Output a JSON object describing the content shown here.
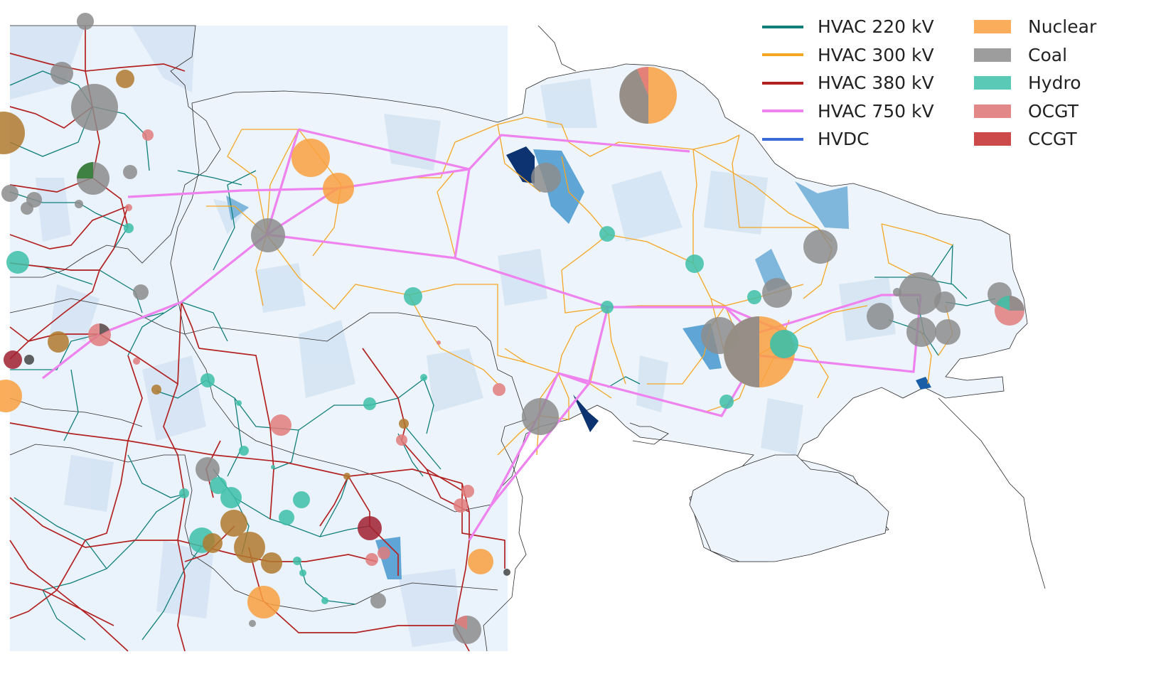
{
  "legend": {
    "lines": [
      {
        "label": "HVAC 220 kV",
        "color": "#0f7f7a"
      },
      {
        "label": "HVAC 300 kV",
        "color": "#f5a623"
      },
      {
        "label": "HVAC 380 kV",
        "color": "#b22222"
      },
      {
        "label": "HVAC 750 kV",
        "color": "#ee82ee"
      },
      {
        "label": "HVDC",
        "color": "#3a6bd6"
      }
    ],
    "carriers": [
      {
        "label": "Nuclear",
        "color": "#f9a03f"
      },
      {
        "label": "Coal",
        "color": "#8c8c8c"
      },
      {
        "label": "Hydro",
        "color": "#3dbfa8"
      },
      {
        "label": "OCGT",
        "color": "#e07b7b"
      },
      {
        "label": "CCGT",
        "color": "#c94040"
      }
    ]
  },
  "colors": {
    "land": "#eaf2fb",
    "region_shade": "#c8dcef",
    "country_border": "#2a2a2a",
    "storage_dark": "#0d3470",
    "storage_light": "#5fa6d6",
    "ccgt_dark": "#a0202f",
    "mixed_brown": "#b07a2e",
    "oil": "#444444"
  }
}
